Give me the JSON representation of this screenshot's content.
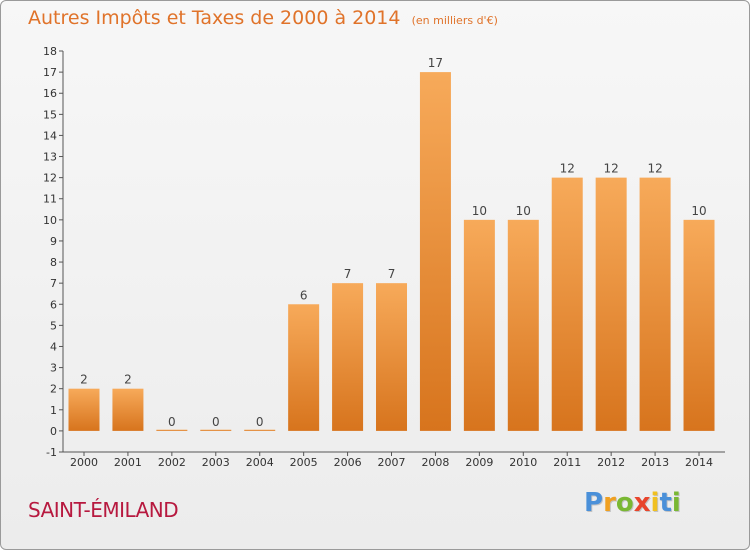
{
  "header": {
    "title": "Autres Impôts et Taxes de 2000 à 2014",
    "subtitle": "(en milliers d'€)"
  },
  "footer": {
    "commune": "SAINT-ÉMILAND",
    "logo_letters": [
      "P",
      "r",
      "o",
      "x",
      "i",
      "t",
      "i"
    ]
  },
  "colors": {
    "title": "#e0732a",
    "commune": "#b7193f",
    "bar_top": "#f7aa5a",
    "bar_bottom": "#d7741d",
    "logo": [
      "#4a90d9",
      "#f0a020",
      "#7ab833",
      "#e8452c",
      "#f0c020",
      "#4a90d9",
      "#7ab833"
    ]
  },
  "chart_data": {
    "type": "bar",
    "categories": [
      "2000",
      "2001",
      "2002",
      "2003",
      "2004",
      "2005",
      "2006",
      "2007",
      "2008",
      "2009",
      "2010",
      "2011",
      "2012",
      "2013",
      "2014"
    ],
    "values": [
      2,
      2,
      0,
      0,
      0,
      6,
      7,
      7,
      17,
      10,
      10,
      12,
      12,
      12,
      10
    ],
    "value_labels": [
      "2",
      "2",
      "0",
      "0",
      "0",
      "6",
      "7",
      "7",
      "17",
      "10",
      "10",
      "12",
      "12",
      "12",
      "10"
    ],
    "ylim": [
      -1,
      18
    ],
    "yticks": [
      -1,
      0,
      1,
      2,
      3,
      4,
      5,
      6,
      7,
      8,
      9,
      10,
      11,
      12,
      13,
      14,
      15,
      16,
      17,
      18
    ],
    "ytick_labels": [
      "-1",
      "0",
      "1",
      "2",
      "3",
      "4",
      "5",
      "6",
      "7",
      "8",
      "9",
      "10",
      "11",
      "12",
      "13",
      "14",
      "15",
      "16",
      "17",
      "18"
    ],
    "grid": false
  }
}
